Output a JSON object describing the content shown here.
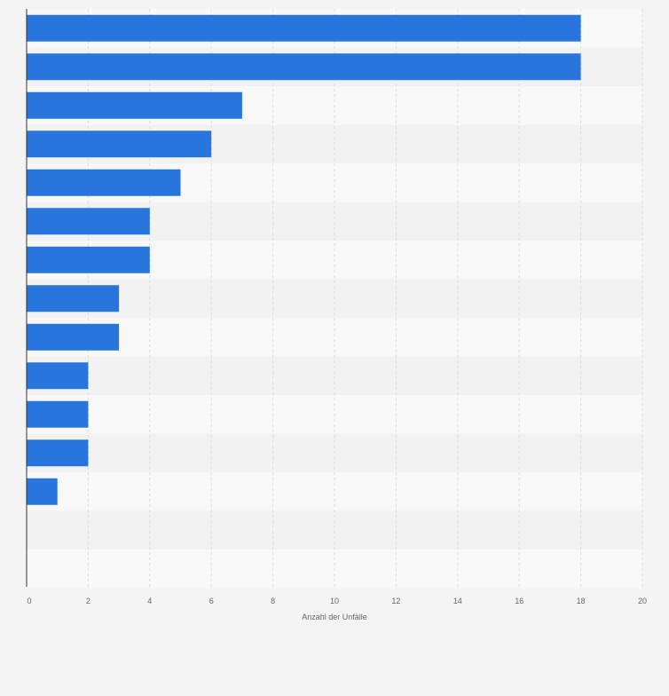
{
  "chart_data": {
    "type": "bar",
    "orientation": "horizontal",
    "title": "",
    "xlabel": "Anzahl der Unfälle",
    "ylabel": "",
    "xlim": [
      0,
      20
    ],
    "x_ticks": [
      "0",
      "2",
      "4",
      "6",
      "8",
      "10",
      "12",
      "14",
      "16",
      "18",
      "20"
    ],
    "categories": [
      "",
      "",
      "",
      "",
      "",
      "",
      "",
      "",
      "",
      "",
      "",
      "",
      "",
      "",
      ""
    ],
    "values": [
      18,
      18,
      7,
      6,
      5,
      4,
      4,
      3,
      3,
      2,
      2,
      2,
      1,
      0,
      0
    ],
    "grid": true,
    "colors": {
      "bar": "#2876dd",
      "page_background": "#f4f4f4",
      "band_light": "#f8f8f8",
      "band_dark": "#f2f2f2",
      "gridline": "#dcdcdc",
      "axis_line": "#333333",
      "tick_text": "#666666"
    }
  }
}
